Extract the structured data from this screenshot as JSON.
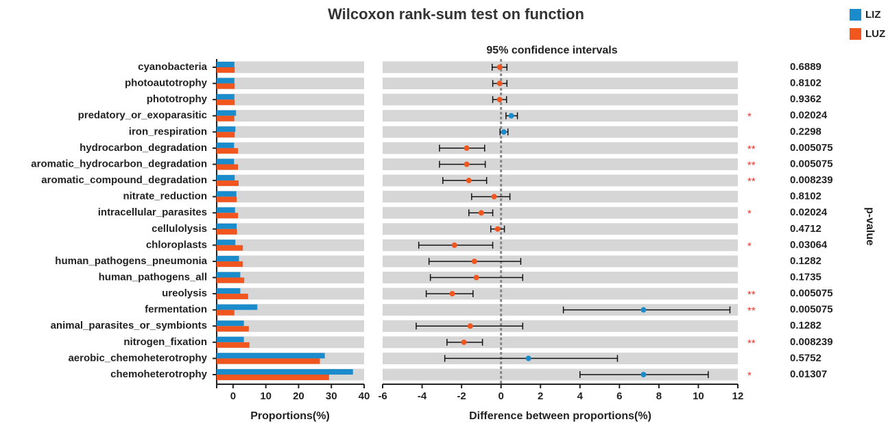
{
  "chart_data": [
    {
      "type": "hbar",
      "title": "Wilcoxon rank-sum test on function",
      "categories": [
        "cyanobacteria",
        "photoautotrophy",
        "phototrophy",
        "predatory_or_exoparasitic",
        "iron_respiration",
        "hydrocarbon_degradation",
        "aromatic_hydrocarbon_degradation",
        "aromatic_compound_degradation",
        "nitrate_reduction",
        "intracellular_parasites",
        "cellulolysis",
        "chloroplasts",
        "human_pathogens_pneumonia",
        "human_pathogens_all",
        "ureolysis",
        "fermentation",
        "animal_parasites_or_symbionts",
        "nitrogen_fixation",
        "aerobic_chemoheterotrophy",
        "chemoheterotrophy"
      ],
      "series": [
        {
          "name": "LIZ",
          "color": "#1a8ccc",
          "values": [
            0.4,
            0.4,
            0.4,
            0.9,
            0.7,
            0.3,
            0.3,
            0.5,
            1.0,
            0.6,
            1.1,
            0.7,
            1.8,
            2.2,
            2.2,
            7.4,
            3.3,
            3.3,
            28,
            36.6
          ]
        },
        {
          "name": "LUZ",
          "color": "#f0561e",
          "values": [
            0.5,
            0.5,
            0.5,
            0.4,
            0.5,
            1.5,
            1.5,
            1.7,
            1.1,
            1.5,
            1.2,
            3.0,
            3.0,
            3.4,
            4.6,
            0.4,
            4.8,
            5.0,
            26.5,
            29.3
          ]
        }
      ],
      "xlabel": "Proportions(%)",
      "xlim": [
        -5,
        40
      ],
      "xticks": [
        0,
        10,
        20,
        30,
        40
      ],
      "legend": "top-right"
    },
    {
      "type": "errorbar",
      "title": "95% confidence intervals",
      "values": [
        -0.07,
        -0.07,
        -0.07,
        0.52,
        0.14,
        -1.74,
        -1.74,
        -1.63,
        -0.35,
        -1.0,
        -0.17,
        -2.36,
        -1.35,
        -1.25,
        -2.47,
        7.22,
        -1.56,
        -1.88,
        1.39,
        7.22
      ],
      "lower": [
        -0.45,
        -0.42,
        -0.42,
        0.25,
        -0.05,
        -3.12,
        -3.12,
        -2.95,
        -1.49,
        -1.63,
        -0.52,
        -4.17,
        -3.65,
        -3.58,
        -3.79,
        3.16,
        -4.3,
        -2.74,
        -2.85,
        4.0
      ],
      "upper": [
        0.3,
        0.3,
        0.28,
        0.83,
        0.35,
        -0.83,
        -0.8,
        -0.73,
        0.45,
        -0.42,
        0.17,
        -0.42,
        1.0,
        1.1,
        -1.42,
        11.6,
        1.1,
        -0.94,
        5.9,
        10.5
      ],
      "xlabel": "Difference between proportions(%)",
      "xlim": [
        -6,
        12
      ],
      "xticks": [
        -6,
        -4,
        -2,
        0,
        2,
        4,
        6,
        8,
        10,
        12
      ],
      "refline": 0,
      "p_label": "p-value",
      "p_values": [
        0.6889,
        0.8102,
        0.9362,
        0.02024,
        0.2298,
        0.005075,
        0.005075,
        0.008239,
        0.8102,
        0.02024,
        0.4712,
        0.03064,
        0.1282,
        0.1735,
        0.005075,
        0.005075,
        0.1282,
        0.008239,
        0.5752,
        0.01307
      ],
      "significance": [
        null,
        null,
        null,
        "*",
        null,
        "**",
        "**",
        "**",
        null,
        "*",
        null,
        "*",
        null,
        null,
        "**",
        "**",
        null,
        "**",
        null,
        "*"
      ],
      "significance_color": "#e8312a"
    }
  ]
}
